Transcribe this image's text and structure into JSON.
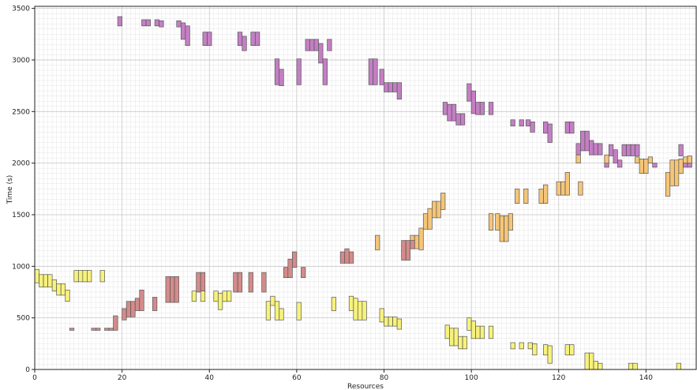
{
  "chart_data": {
    "type": "bar",
    "subtype": "resource-timeline",
    "title": "",
    "xlabel": "Resources",
    "ylabel": "Time (s)",
    "xlim": [
      0,
      151.5
    ],
    "ylim": [
      0,
      3520
    ],
    "xticks": [
      0,
      20,
      40,
      60,
      80,
      100,
      120,
      140
    ],
    "yticks": [
      0,
      500,
      1000,
      1500,
      2000,
      2500,
      3000,
      3500
    ],
    "grid": true,
    "bar_width": 1,
    "series": [
      {
        "color": "#c47fc4",
        "bars": [
          [
            19.5,
            3330,
            3420
          ],
          [
            25,
            3330,
            3390
          ],
          [
            26,
            3330,
            3390
          ],
          [
            28,
            3330,
            3390
          ],
          [
            29,
            3320,
            3380
          ],
          [
            33,
            3320,
            3380
          ],
          [
            34,
            3200,
            3360
          ],
          [
            35,
            3140,
            3330
          ],
          [
            39,
            3140,
            3270
          ],
          [
            40,
            3140,
            3270
          ],
          [
            47,
            3140,
            3270
          ],
          [
            48,
            3090,
            3230
          ],
          [
            50,
            3140,
            3270
          ],
          [
            51,
            3140,
            3270
          ],
          [
            55.5,
            2760,
            3010
          ],
          [
            56.5,
            2750,
            2910
          ],
          [
            60.5,
            2760,
            3010
          ],
          [
            62.5,
            3090,
            3200
          ],
          [
            63.5,
            3090,
            3200
          ],
          [
            64.5,
            3090,
            3200
          ],
          [
            65.5,
            2970,
            3160
          ],
          [
            66.5,
            2760,
            3010
          ],
          [
            67.5,
            3090,
            3200
          ],
          [
            77,
            2760,
            3010
          ],
          [
            78,
            2760,
            3010
          ],
          [
            79.5,
            2760,
            2910
          ],
          [
            80.5,
            2690,
            2780
          ],
          [
            81.5,
            2690,
            2780
          ],
          [
            82.5,
            2690,
            2780
          ],
          [
            83.5,
            2620,
            2780
          ],
          [
            94,
            2470,
            2590
          ],
          [
            95,
            2410,
            2570
          ],
          [
            96,
            2410,
            2570
          ],
          [
            97,
            2370,
            2480
          ],
          [
            98,
            2370,
            2480
          ],
          [
            99.5,
            2600,
            2770
          ],
          [
            100.5,
            2480,
            2700
          ],
          [
            101.5,
            2470,
            2590
          ],
          [
            102.5,
            2470,
            2590
          ],
          [
            104.5,
            2470,
            2590
          ],
          [
            109.5,
            2360,
            2420
          ],
          [
            111.5,
            2360,
            2420
          ],
          [
            113,
            2360,
            2420
          ],
          [
            114,
            2300,
            2400
          ],
          [
            117,
            2290,
            2400
          ],
          [
            118,
            2200,
            2380
          ],
          [
            122,
            2290,
            2400
          ],
          [
            123,
            2290,
            2400
          ],
          [
            124.5,
            2080,
            2190
          ],
          [
            125.5,
            2120,
            2310
          ],
          [
            126.5,
            2120,
            2310
          ],
          [
            127.5,
            2080,
            2220
          ],
          [
            128.5,
            2080,
            2190
          ],
          [
            129.5,
            2080,
            2190
          ],
          [
            131,
            1960,
            2030
          ],
          [
            132,
            2070,
            2180
          ],
          [
            133,
            2000,
            2130
          ],
          [
            134,
            1960,
            2030
          ],
          [
            135,
            2070,
            2180
          ],
          [
            136,
            2070,
            2180
          ],
          [
            137,
            2070,
            2180
          ],
          [
            138,
            2070,
            2180
          ],
          [
            142,
            1960,
            2000
          ],
          [
            148,
            2070,
            2180
          ],
          [
            149,
            1960,
            2000
          ],
          [
            150,
            1960,
            2060
          ]
        ]
      },
      {
        "color": "#f5c578",
        "bars": [
          [
            78.5,
            1160,
            1300
          ],
          [
            86.5,
            1170,
            1300
          ],
          [
            87.5,
            1170,
            1300
          ],
          [
            88.5,
            1160,
            1370
          ],
          [
            89.5,
            1360,
            1510
          ],
          [
            90.5,
            1360,
            1560
          ],
          [
            91.5,
            1470,
            1630
          ],
          [
            92.5,
            1470,
            1630
          ],
          [
            93.5,
            1550,
            1710
          ],
          [
            104.5,
            1350,
            1510
          ],
          [
            106,
            1350,
            1510
          ],
          [
            107,
            1240,
            1490
          ],
          [
            108,
            1240,
            1490
          ],
          [
            109,
            1350,
            1510
          ],
          [
            110.5,
            1610,
            1750
          ],
          [
            112.5,
            1610,
            1750
          ],
          [
            116,
            1610,
            1750
          ],
          [
            117,
            1610,
            1790
          ],
          [
            120,
            1690,
            1820
          ],
          [
            121,
            1690,
            1820
          ],
          [
            122,
            1690,
            1910
          ],
          [
            125,
            1690,
            1820
          ],
          [
            124.5,
            2000,
            2080
          ],
          [
            131,
            2000,
            2080
          ],
          [
            138,
            2000,
            2060
          ],
          [
            139,
            1900,
            2040
          ],
          [
            140,
            1900,
            2040
          ],
          [
            141,
            2000,
            2060
          ],
          [
            145,
            1680,
            1910
          ],
          [
            146,
            1780,
            2030
          ],
          [
            147,
            1780,
            2030
          ],
          [
            148,
            1900,
            2040
          ],
          [
            149,
            2000,
            2060
          ],
          [
            150,
            2000,
            2070
          ]
        ]
      },
      {
        "color": "#d48b8b",
        "bars": [
          [
            8.5,
            380,
            400
          ],
          [
            13.5,
            380,
            400
          ],
          [
            14.5,
            380,
            400
          ],
          [
            16.5,
            380,
            400
          ],
          [
            17.5,
            380,
            400
          ],
          [
            18.5,
            380,
            520
          ],
          [
            20.5,
            480,
            590
          ],
          [
            21.5,
            510,
            660
          ],
          [
            22.5,
            510,
            660
          ],
          [
            23.5,
            570,
            690
          ],
          [
            24.5,
            570,
            770
          ],
          [
            27.5,
            570,
            700
          ],
          [
            30.5,
            650,
            900
          ],
          [
            31.5,
            650,
            900
          ],
          [
            32.5,
            650,
            900
          ],
          [
            37.5,
            750,
            940
          ],
          [
            38.5,
            750,
            940
          ],
          [
            46,
            750,
            940
          ],
          [
            47,
            750,
            940
          ],
          [
            49.5,
            750,
            940
          ],
          [
            52.5,
            750,
            940
          ],
          [
            57.5,
            890,
            990
          ],
          [
            58.5,
            890,
            1070
          ],
          [
            59.5,
            990,
            1140
          ],
          [
            61.5,
            890,
            990
          ],
          [
            70.5,
            1030,
            1140
          ],
          [
            71.5,
            1030,
            1170
          ],
          [
            72.5,
            1030,
            1140
          ],
          [
            84.5,
            1060,
            1250
          ],
          [
            85.5,
            1060,
            1250
          ],
          [
            86.5,
            1170,
            1250
          ]
        ]
      },
      {
        "color": "#f7f27c",
        "bars": [
          [
            0.5,
            840,
            970
          ],
          [
            1.5,
            800,
            920
          ],
          [
            2.5,
            800,
            920
          ],
          [
            3.5,
            800,
            920
          ],
          [
            4.5,
            760,
            870
          ],
          [
            5.5,
            720,
            830
          ],
          [
            6.5,
            720,
            830
          ],
          [
            7.5,
            660,
            770
          ],
          [
            9.5,
            850,
            960
          ],
          [
            10.5,
            850,
            960
          ],
          [
            11.5,
            850,
            960
          ],
          [
            12.5,
            850,
            960
          ],
          [
            15.5,
            850,
            960
          ],
          [
            36.5,
            660,
            760
          ],
          [
            38.5,
            660,
            760
          ],
          [
            41.5,
            660,
            760
          ],
          [
            42.5,
            580,
            740
          ],
          [
            43.5,
            660,
            760
          ],
          [
            44.5,
            660,
            760
          ],
          [
            53.5,
            480,
            660
          ],
          [
            54.5,
            620,
            710
          ],
          [
            55.5,
            480,
            660
          ],
          [
            56.5,
            480,
            590
          ],
          [
            60.5,
            480,
            650
          ],
          [
            68.5,
            570,
            700
          ],
          [
            72.5,
            570,
            710
          ],
          [
            73.5,
            480,
            690
          ],
          [
            74.5,
            480,
            660
          ],
          [
            75.5,
            480,
            660
          ],
          [
            79.5,
            460,
            590
          ],
          [
            80.5,
            420,
            510
          ],
          [
            81.5,
            420,
            510
          ],
          [
            82.5,
            420,
            510
          ],
          [
            83.5,
            390,
            490
          ],
          [
            94.5,
            300,
            430
          ],
          [
            95.5,
            230,
            400
          ],
          [
            96.5,
            230,
            400
          ],
          [
            97.5,
            200,
            320
          ],
          [
            98.5,
            200,
            320
          ],
          [
            99.5,
            380,
            500
          ],
          [
            100.5,
            300,
            470
          ],
          [
            101.5,
            300,
            420
          ],
          [
            102.5,
            300,
            420
          ],
          [
            104.5,
            300,
            420
          ],
          [
            109.5,
            200,
            260
          ],
          [
            111.5,
            200,
            260
          ],
          [
            113.5,
            200,
            260
          ],
          [
            114.5,
            140,
            250
          ],
          [
            117,
            140,
            240
          ],
          [
            118,
            60,
            230
          ],
          [
            122,
            140,
            240
          ],
          [
            123,
            140,
            240
          ],
          [
            126.5,
            0,
            160
          ],
          [
            127.5,
            0,
            160
          ],
          [
            128.5,
            0,
            80
          ],
          [
            129.5,
            0,
            60
          ],
          [
            136.5,
            0,
            60
          ],
          [
            137.5,
            0,
            60
          ],
          [
            147.5,
            0,
            60
          ]
        ]
      }
    ]
  }
}
